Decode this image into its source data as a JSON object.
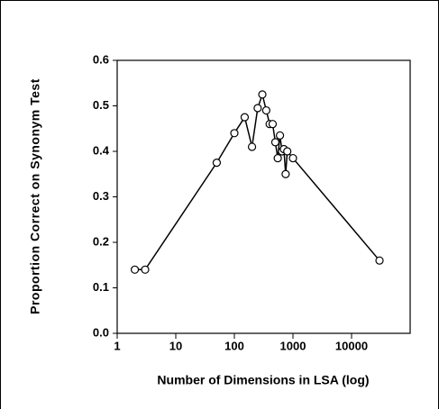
{
  "chart_data": {
    "type": "line",
    "xlabel": "Number of Dimensions in LSA (log)",
    "ylabel": "Proportion Correct on Synonym Test",
    "xscale": "log",
    "x": [
      2,
      3,
      50,
      100,
      150,
      200,
      250,
      300,
      350,
      400,
      450,
      500,
      550,
      600,
      650,
      700,
      750,
      800,
      1000,
      30000
    ],
    "series": [
      {
        "color": "#000000",
        "values": [
          0.14,
          0.14,
          0.375,
          0.44,
          0.475,
          0.41,
          0.495,
          0.525,
          0.49,
          0.46,
          0.46,
          0.42,
          0.385,
          0.435,
          0.4,
          0.405,
          0.35,
          0.4,
          0.385,
          0.16
        ]
      }
    ],
    "xlim": [
      1,
      100000
    ],
    "xticks": [
      1,
      10,
      100,
      1000,
      10000
    ],
    "ylim": [
      0,
      0.6
    ],
    "yticks": [
      {
        "value": 0,
        "label": "0.0"
      },
      0.1,
      0.2,
      0.3,
      0.4,
      0.5,
      0.6
    ]
  }
}
